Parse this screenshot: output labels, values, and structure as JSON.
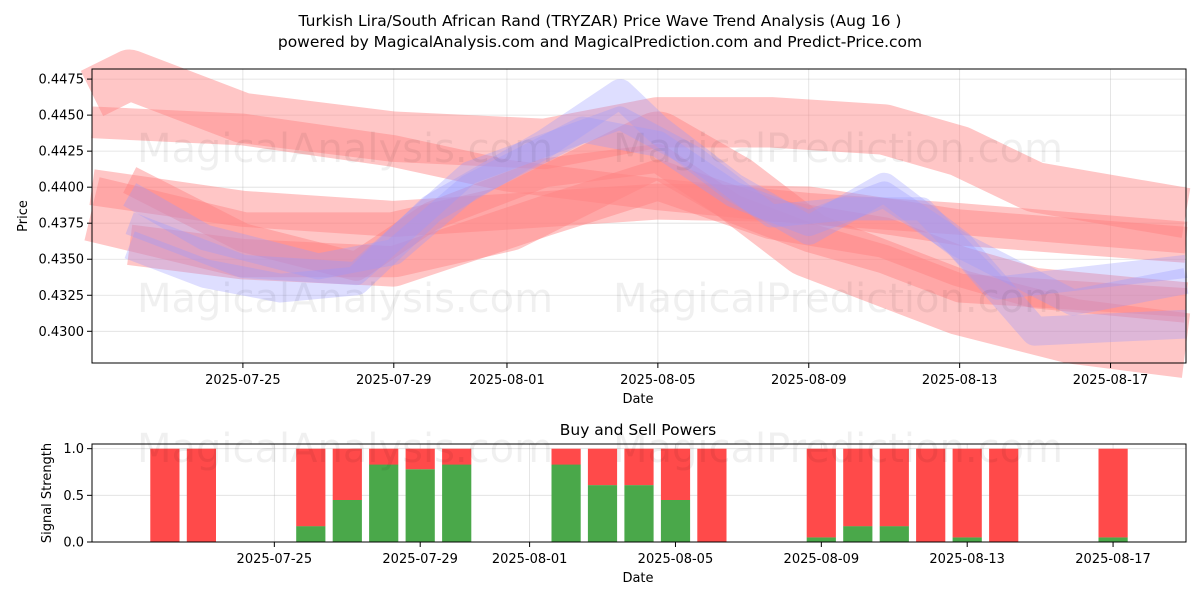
{
  "title_line1": "Turkish Lira/South African Rand (TRYZAR) Price Wave Trend Analysis (Aug 16 )",
  "title_line2": "powered by MagicalAnalysis.com and MagicalPrediction.com and Predict-Price.com",
  "watermarks": [
    "MagicalAnalysis.com",
    "MagicalPrediction.com"
  ],
  "colors": {
    "buy": "#4aa84a",
    "sell": "#ff4a4a",
    "band_red": "#ff8080",
    "band_blue": "#9999ff"
  },
  "chart_data": [
    {
      "type": "area",
      "xlabel": "Date",
      "ylabel": "Price",
      "ylim": [
        0.4278,
        0.4482
      ],
      "xlim": [
        "2025-07-21",
        "2025-08-19"
      ],
      "grid": true,
      "x_ticks": [
        "2025-07-25",
        "2025-07-29",
        "2025-08-01",
        "2025-08-05",
        "2025-08-09",
        "2025-08-13",
        "2025-08-17"
      ],
      "y_ticks": [
        "0.4300",
        "0.4325",
        "0.4350",
        "0.4375",
        "0.4400",
        "0.4425",
        "0.4450",
        "0.4475"
      ],
      "bands": [
        {
          "color": "red",
          "width": 0.0035,
          "points": [
            [
              "2025-07-21",
              0.4465
            ],
            [
              "2025-07-22",
              0.4478
            ],
            [
              "2025-07-25",
              0.4448
            ],
            [
              "2025-07-29",
              0.4435
            ],
            [
              "2025-08-02",
              0.443
            ],
            [
              "2025-08-05",
              0.4445
            ],
            [
              "2025-08-08",
              0.4445
            ],
            [
              "2025-08-11",
              0.444
            ],
            [
              "2025-08-13",
              0.4425
            ],
            [
              "2025-08-15",
              0.44
            ],
            [
              "2025-08-19",
              0.4382
            ]
          ]
        },
        {
          "color": "red",
          "width": 0.0022,
          "points": [
            [
              "2025-07-21",
              0.4445
            ],
            [
              "2025-07-25",
              0.444
            ],
            [
              "2025-07-29",
              0.4425
            ],
            [
              "2025-08-01",
              0.4408
            ],
            [
              "2025-08-05",
              0.4395
            ],
            [
              "2025-08-09",
              0.4385
            ],
            [
              "2025-08-13",
              0.4378
            ],
            [
              "2025-08-19",
              0.4365
            ]
          ]
        },
        {
          "color": "red",
          "width": 0.0045,
          "points": [
            [
              "2025-07-21",
              0.4385
            ],
            [
              "2025-07-25",
              0.436
            ],
            [
              "2025-07-29",
              0.436
            ],
            [
              "2025-08-01",
              0.4378
            ],
            [
              "2025-08-05",
              0.443
            ],
            [
              "2025-08-07",
              0.44
            ],
            [
              "2025-08-09",
              0.436
            ],
            [
              "2025-08-13",
              0.432
            ],
            [
              "2025-08-16",
              0.43
            ],
            [
              "2025-08-19",
              0.429
            ]
          ]
        },
        {
          "color": "red",
          "width": 0.0025,
          "points": [
            [
              "2025-07-21",
              0.44
            ],
            [
              "2025-07-25",
              0.4385
            ],
            [
              "2025-07-29",
              0.4378
            ],
            [
              "2025-08-01",
              0.4383
            ],
            [
              "2025-08-05",
              0.439
            ],
            [
              "2025-08-09",
              0.4388
            ],
            [
              "2025-08-13",
              0.4372
            ],
            [
              "2025-08-19",
              0.436
            ]
          ]
        },
        {
          "color": "red",
          "width": 0.002,
          "points": [
            [
              "2025-07-22",
              0.4405
            ],
            [
              "2025-07-25",
              0.4365
            ],
            [
              "2025-07-28",
              0.4345
            ],
            [
              "2025-07-30",
              0.438
            ],
            [
              "2025-08-02",
              0.441
            ],
            [
              "2025-08-05",
              0.442
            ],
            [
              "2025-08-07",
              0.4385
            ],
            [
              "2025-08-09",
              0.4365
            ],
            [
              "2025-08-11",
              0.435
            ],
            [
              "2025-08-13",
              0.433
            ],
            [
              "2025-08-16",
              0.4325
            ],
            [
              "2025-08-19",
              0.432
            ]
          ]
        },
        {
          "color": "red",
          "width": 0.0028,
          "points": [
            [
              "2025-07-22",
              0.436
            ],
            [
              "2025-07-25",
              0.435
            ],
            [
              "2025-07-29",
              0.4345
            ],
            [
              "2025-08-02",
              0.438
            ],
            [
              "2025-08-05",
              0.4405
            ],
            [
              "2025-08-08",
              0.4378
            ],
            [
              "2025-08-11",
              0.4365
            ],
            [
              "2025-08-13",
              0.4345
            ],
            [
              "2025-08-15",
              0.433
            ],
            [
              "2025-08-19",
              0.432
            ]
          ]
        },
        {
          "color": "blue",
          "width": 0.002,
          "points": [
            [
              "2025-07-22",
              0.436
            ],
            [
              "2025-07-24",
              0.434
            ],
            [
              "2025-07-26",
              0.433
            ],
            [
              "2025-07-28",
              0.4335
            ],
            [
              "2025-07-30",
              0.4385
            ],
            [
              "2025-08-02",
              0.443
            ],
            [
              "2025-08-04",
              0.4465
            ],
            [
              "2025-08-05",
              0.444
            ],
            [
              "2025-08-07",
              0.44
            ],
            [
              "2025-08-09",
              0.437
            ],
            [
              "2025-08-11",
              0.44
            ],
            [
              "2025-08-13",
              0.436
            ],
            [
              "2025-08-15",
              0.43
            ],
            [
              "2025-08-19",
              0.4305
            ]
          ]
        },
        {
          "color": "blue",
          "width": 0.0018,
          "points": [
            [
              "2025-07-22",
              0.4395
            ],
            [
              "2025-07-24",
              0.4365
            ],
            [
              "2025-07-27",
              0.4345
            ],
            [
              "2025-07-29",
              0.4355
            ],
            [
              "2025-07-31",
              0.44
            ],
            [
              "2025-08-03",
              0.444
            ],
            [
              "2025-08-05",
              0.443
            ],
            [
              "2025-08-07",
              0.4395
            ],
            [
              "2025-08-09",
              0.4375
            ],
            [
              "2025-08-11",
              0.4395
            ],
            [
              "2025-08-13",
              0.436
            ],
            [
              "2025-08-16",
              0.432
            ],
            [
              "2025-08-19",
              0.4335
            ]
          ]
        },
        {
          "color": "blue",
          "width": 0.0016,
          "points": [
            [
              "2025-07-22",
              0.4375
            ],
            [
              "2025-07-25",
              0.4345
            ],
            [
              "2025-07-28",
              0.434
            ],
            [
              "2025-07-31",
              0.441
            ],
            [
              "2025-08-04",
              0.4448
            ],
            [
              "2025-08-06",
              0.442
            ],
            [
              "2025-08-08",
              0.438
            ],
            [
              "2025-08-10",
              0.4385
            ],
            [
              "2025-08-12",
              0.4385
            ],
            [
              "2025-08-14",
              0.433
            ],
            [
              "2025-08-19",
              0.4345
            ]
          ]
        }
      ]
    },
    {
      "type": "bar",
      "title": "Buy and Sell Powers",
      "xlabel": "Date",
      "ylabel": "Signal Strength",
      "ylim": [
        0,
        1.05
      ],
      "xlim": [
        "2025-07-20",
        "2025-08-19"
      ],
      "x_ticks": [
        "2025-07-25",
        "2025-07-29",
        "2025-08-01",
        "2025-08-05",
        "2025-08-09",
        "2025-08-13",
        "2025-08-17"
      ],
      "y_ticks": [
        "0.0",
        "0.5",
        "1.0"
      ],
      "grid": true,
      "categories": [
        "2025-07-22",
        "2025-07-23",
        "2025-07-26",
        "2025-07-27",
        "2025-07-28",
        "2025-07-29",
        "2025-07-30",
        "2025-08-02",
        "2025-08-03",
        "2025-08-04",
        "2025-08-05",
        "2025-08-06",
        "2025-08-09",
        "2025-08-10",
        "2025-08-11",
        "2025-08-12",
        "2025-08-13",
        "2025-08-14",
        "2025-08-17"
      ],
      "series": [
        {
          "name": "Buy",
          "values": [
            0,
            0,
            0.17,
            0.45,
            0.83,
            0.78,
            0.83,
            0.83,
            0.61,
            0.61,
            0.45,
            0,
            0.05,
            0.17,
            0.17,
            0,
            0.05,
            0,
            0.05
          ]
        },
        {
          "name": "Sell",
          "values": [
            1,
            1,
            0.83,
            0.55,
            0.17,
            0.22,
            0.17,
            0.17,
            0.39,
            0.39,
            0.55,
            1,
            0.95,
            0.83,
            0.83,
            1,
            0.95,
            1,
            0.95
          ]
        }
      ]
    }
  ]
}
